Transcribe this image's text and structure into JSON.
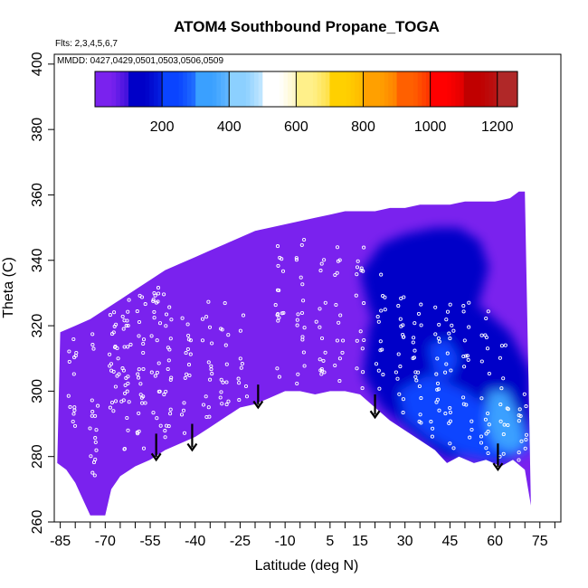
{
  "chart_data": {
    "type": "heatmap",
    "title": "ATOM4 Southbound Propane_TOGA",
    "flights_label": "Flts: 2,3,4,5,6,7",
    "dates_label": "MMDD: 0427,0429,0501,0503,0506,0509",
    "xlabel": "Latitude (deg N)",
    "ylabel": "Theta (C)",
    "xlim": [
      -87,
      82
    ],
    "ylim": [
      260,
      403
    ],
    "x_ticks": [
      -85,
      -70,
      -55,
      -40,
      -25,
      -10,
      5,
      15,
      30,
      45,
      60,
      75
    ],
    "x_tick_labels": [
      "-85",
      "-70",
      "-55",
      "-40",
      "-25",
      "-10",
      "5",
      "15",
      "30",
      "45",
      "60",
      "75"
    ],
    "x_minor_ticks": [
      -80,
      -75,
      -65,
      -60,
      -50,
      -45,
      -35,
      -30,
      -20,
      -15,
      -5,
      0,
      10,
      20,
      25,
      35,
      40,
      50,
      55,
      65,
      70,
      80
    ],
    "y_ticks": [
      260,
      280,
      300,
      320,
      340,
      360,
      380,
      400
    ],
    "y_tick_labels": [
      "260",
      "280",
      "300",
      "320",
      "340",
      "360",
      "380",
      "400"
    ],
    "colorbar": {
      "range": [
        0,
        1260
      ],
      "ticks": [
        200,
        400,
        600,
        800,
        1000,
        1200
      ],
      "tick_labels": [
        "200",
        "400",
        "600",
        "800",
        "1000",
        "1200"
      ],
      "bins": [
        0,
        100,
        200,
        300,
        400,
        500,
        600,
        700,
        800,
        900,
        1000,
        1100,
        1200,
        1260
      ],
      "colors": [
        "#7a22ee",
        "#0000c8",
        "#0a44ff",
        "#3aa0ff",
        "#8cd0ff",
        "#ffffff",
        "#fff08a",
        "#ffd000",
        "#ffa000",
        "#ff6000",
        "#ff0000",
        "#c00000",
        "#b02828"
      ]
    },
    "top_boundary": [
      [
        -85,
        318
      ],
      [
        -80,
        320
      ],
      [
        -75,
        322
      ],
      [
        -70,
        325
      ],
      [
        -65,
        328
      ],
      [
        -60,
        331
      ],
      [
        -55,
        334
      ],
      [
        -50,
        337
      ],
      [
        -45,
        339
      ],
      [
        -40,
        341
      ],
      [
        -35,
        343
      ],
      [
        -30,
        345
      ],
      [
        -25,
        347
      ],
      [
        -20,
        349
      ],
      [
        -15,
        350
      ],
      [
        -10,
        351
      ],
      [
        -5,
        352
      ],
      [
        0,
        353
      ],
      [
        5,
        354
      ],
      [
        10,
        355
      ],
      [
        15,
        355
      ],
      [
        20,
        355
      ],
      [
        25,
        356
      ],
      [
        30,
        356
      ],
      [
        35,
        357
      ],
      [
        40,
        357
      ],
      [
        45,
        357
      ],
      [
        50,
        358
      ],
      [
        55,
        358
      ],
      [
        60,
        358
      ],
      [
        65,
        359
      ],
      [
        68,
        361
      ],
      [
        70,
        361
      ]
    ],
    "bottom_boundary": [
      [
        72,
        265
      ],
      [
        70,
        276
      ],
      [
        66,
        279
      ],
      [
        62,
        277
      ],
      [
        57,
        279
      ],
      [
        53,
        278
      ],
      [
        48,
        280
      ],
      [
        44,
        278
      ],
      [
        40,
        282
      ],
      [
        35,
        285
      ],
      [
        30,
        288
      ],
      [
        25,
        291
      ],
      [
        20,
        295
      ],
      [
        15,
        299
      ],
      [
        10,
        300
      ],
      [
        5,
        300
      ],
      [
        0,
        299
      ],
      [
        -5,
        300
      ],
      [
        -10,
        300
      ],
      [
        -15,
        298
      ],
      [
        -20,
        296
      ],
      [
        -25,
        295
      ],
      [
        -30,
        292
      ],
      [
        -35,
        289
      ],
      [
        -40,
        286
      ],
      [
        -45,
        284
      ],
      [
        -50,
        282
      ],
      [
        -55,
        279
      ],
      [
        -60,
        277
      ],
      [
        -65,
        274
      ],
      [
        -68,
        270
      ],
      [
        -70,
        262
      ],
      [
        -75,
        262
      ],
      [
        -77,
        266
      ],
      [
        -80,
        272
      ],
      [
        -83,
        276
      ],
      [
        -86,
        278
      ]
    ],
    "regions": [
      {
        "name": "background",
        "value": 30
      },
      {
        "name": "tropical-upper",
        "value": 120,
        "points": [
          [
            15,
            336
          ],
          [
            22,
            345
          ],
          [
            30,
            348
          ],
          [
            40,
            350
          ],
          [
            48,
            350
          ],
          [
            55,
            346
          ],
          [
            58,
            338
          ],
          [
            55,
            328
          ],
          [
            48,
            318
          ],
          [
            40,
            310
          ],
          [
            33,
            306
          ],
          [
            25,
            312
          ],
          [
            18,
            325
          ]
        ]
      },
      {
        "name": "northern-core",
        "value": 170,
        "points": [
          [
            18,
            320
          ],
          [
            25,
            330
          ],
          [
            35,
            334
          ],
          [
            45,
            330
          ],
          [
            55,
            326
          ],
          [
            65,
            318
          ],
          [
            72,
            306
          ],
          [
            72,
            285
          ],
          [
            66,
            279
          ],
          [
            60,
            278
          ],
          [
            50,
            280
          ],
          [
            44,
            279
          ],
          [
            38,
            283
          ],
          [
            30,
            289
          ],
          [
            22,
            295
          ],
          [
            16,
            305
          ]
        ]
      },
      {
        "name": "northern-deep",
        "value": 200,
        "points": [
          [
            28,
            300
          ],
          [
            38,
            305
          ],
          [
            50,
            300
          ],
          [
            58,
            295
          ],
          [
            70,
            290
          ],
          [
            72,
            282
          ],
          [
            66,
            280
          ],
          [
            58,
            279
          ],
          [
            48,
            281
          ],
          [
            38,
            286
          ],
          [
            30,
            292
          ]
        ]
      },
      {
        "name": "plume-a",
        "value": 310,
        "points": [
          [
            58,
            300
          ],
          [
            64,
            300
          ],
          [
            68,
            292
          ],
          [
            70,
            284
          ],
          [
            66,
            281
          ],
          [
            60,
            283
          ],
          [
            57,
            290
          ]
        ]
      },
      {
        "name": "plume-b",
        "value": 360,
        "points": [
          [
            60,
            294
          ],
          [
            65,
            294
          ],
          [
            66,
            287
          ],
          [
            62,
            285
          ],
          [
            59,
            288
          ]
        ]
      },
      {
        "name": "plume-c",
        "value": 260,
        "points": [
          [
            38,
            314
          ],
          [
            44,
            316
          ],
          [
            48,
            310
          ],
          [
            45,
            304
          ],
          [
            40,
            305
          ]
        ]
      }
    ],
    "arrows": [
      {
        "lat": -53,
        "theta_top": 287,
        "theta_bottom": 279
      },
      {
        "lat": -41,
        "theta_top": 290,
        "theta_bottom": 282
      },
      {
        "lat": -19,
        "theta_top": 302,
        "theta_bottom": 295
      },
      {
        "lat": 20,
        "theta_top": 299,
        "theta_bottom": 292
      },
      {
        "lat": 61,
        "theta_top": 284,
        "theta_bottom": 276
      }
    ],
    "sample_columns": [
      {
        "lat": -81,
        "theta_min": 283,
        "theta_max": 316,
        "n": 14
      },
      {
        "lat": -74,
        "theta_min": 274,
        "theta_max": 320,
        "n": 18
      },
      {
        "lat": -67,
        "theta_min": 285,
        "theta_max": 326,
        "n": 22
      },
      {
        "lat": -63,
        "theta_min": 282,
        "theta_max": 328,
        "n": 26
      },
      {
        "lat": -58,
        "theta_min": 281,
        "theta_max": 330,
        "n": 24
      },
      {
        "lat": -53,
        "theta_min": 288,
        "theta_max": 332,
        "n": 22
      },
      {
        "lat": -49,
        "theta_min": 284,
        "theta_max": 330,
        "n": 20
      },
      {
        "lat": -43,
        "theta_min": 287,
        "theta_max": 323,
        "n": 16
      },
      {
        "lat": -36,
        "theta_min": 290,
        "theta_max": 328,
        "n": 16
      },
      {
        "lat": -30,
        "theta_min": 293,
        "theta_max": 330,
        "n": 14
      },
      {
        "lat": -24,
        "theta_min": 296,
        "theta_max": 325,
        "n": 10
      },
      {
        "lat": -12,
        "theta_min": 303,
        "theta_max": 346,
        "n": 16
      },
      {
        "lat": -5,
        "theta_min": 302,
        "theta_max": 348,
        "n": 18
      },
      {
        "lat": 2,
        "theta_min": 305,
        "theta_max": 348,
        "n": 16
      },
      {
        "lat": 8,
        "theta_min": 302,
        "theta_max": 345,
        "n": 14
      },
      {
        "lat": 15,
        "theta_min": 300,
        "theta_max": 344,
        "n": 16
      },
      {
        "lat": 22,
        "theta_min": 296,
        "theta_max": 336,
        "n": 14
      },
      {
        "lat": 28,
        "theta_min": 293,
        "theta_max": 330,
        "n": 16
      },
      {
        "lat": 34,
        "theta_min": 288,
        "theta_max": 330,
        "n": 18
      },
      {
        "lat": 40,
        "theta_min": 285,
        "theta_max": 327,
        "n": 16
      },
      {
        "lat": 45,
        "theta_min": 282,
        "theta_max": 332,
        "n": 18
      },
      {
        "lat": 51,
        "theta_min": 283,
        "theta_max": 330,
        "n": 16
      },
      {
        "lat": 57,
        "theta_min": 281,
        "theta_max": 330,
        "n": 18
      },
      {
        "lat": 63,
        "theta_min": 279,
        "theta_max": 318,
        "n": 14
      },
      {
        "lat": 69,
        "theta_min": 278,
        "theta_max": 300,
        "n": 12
      }
    ]
  }
}
